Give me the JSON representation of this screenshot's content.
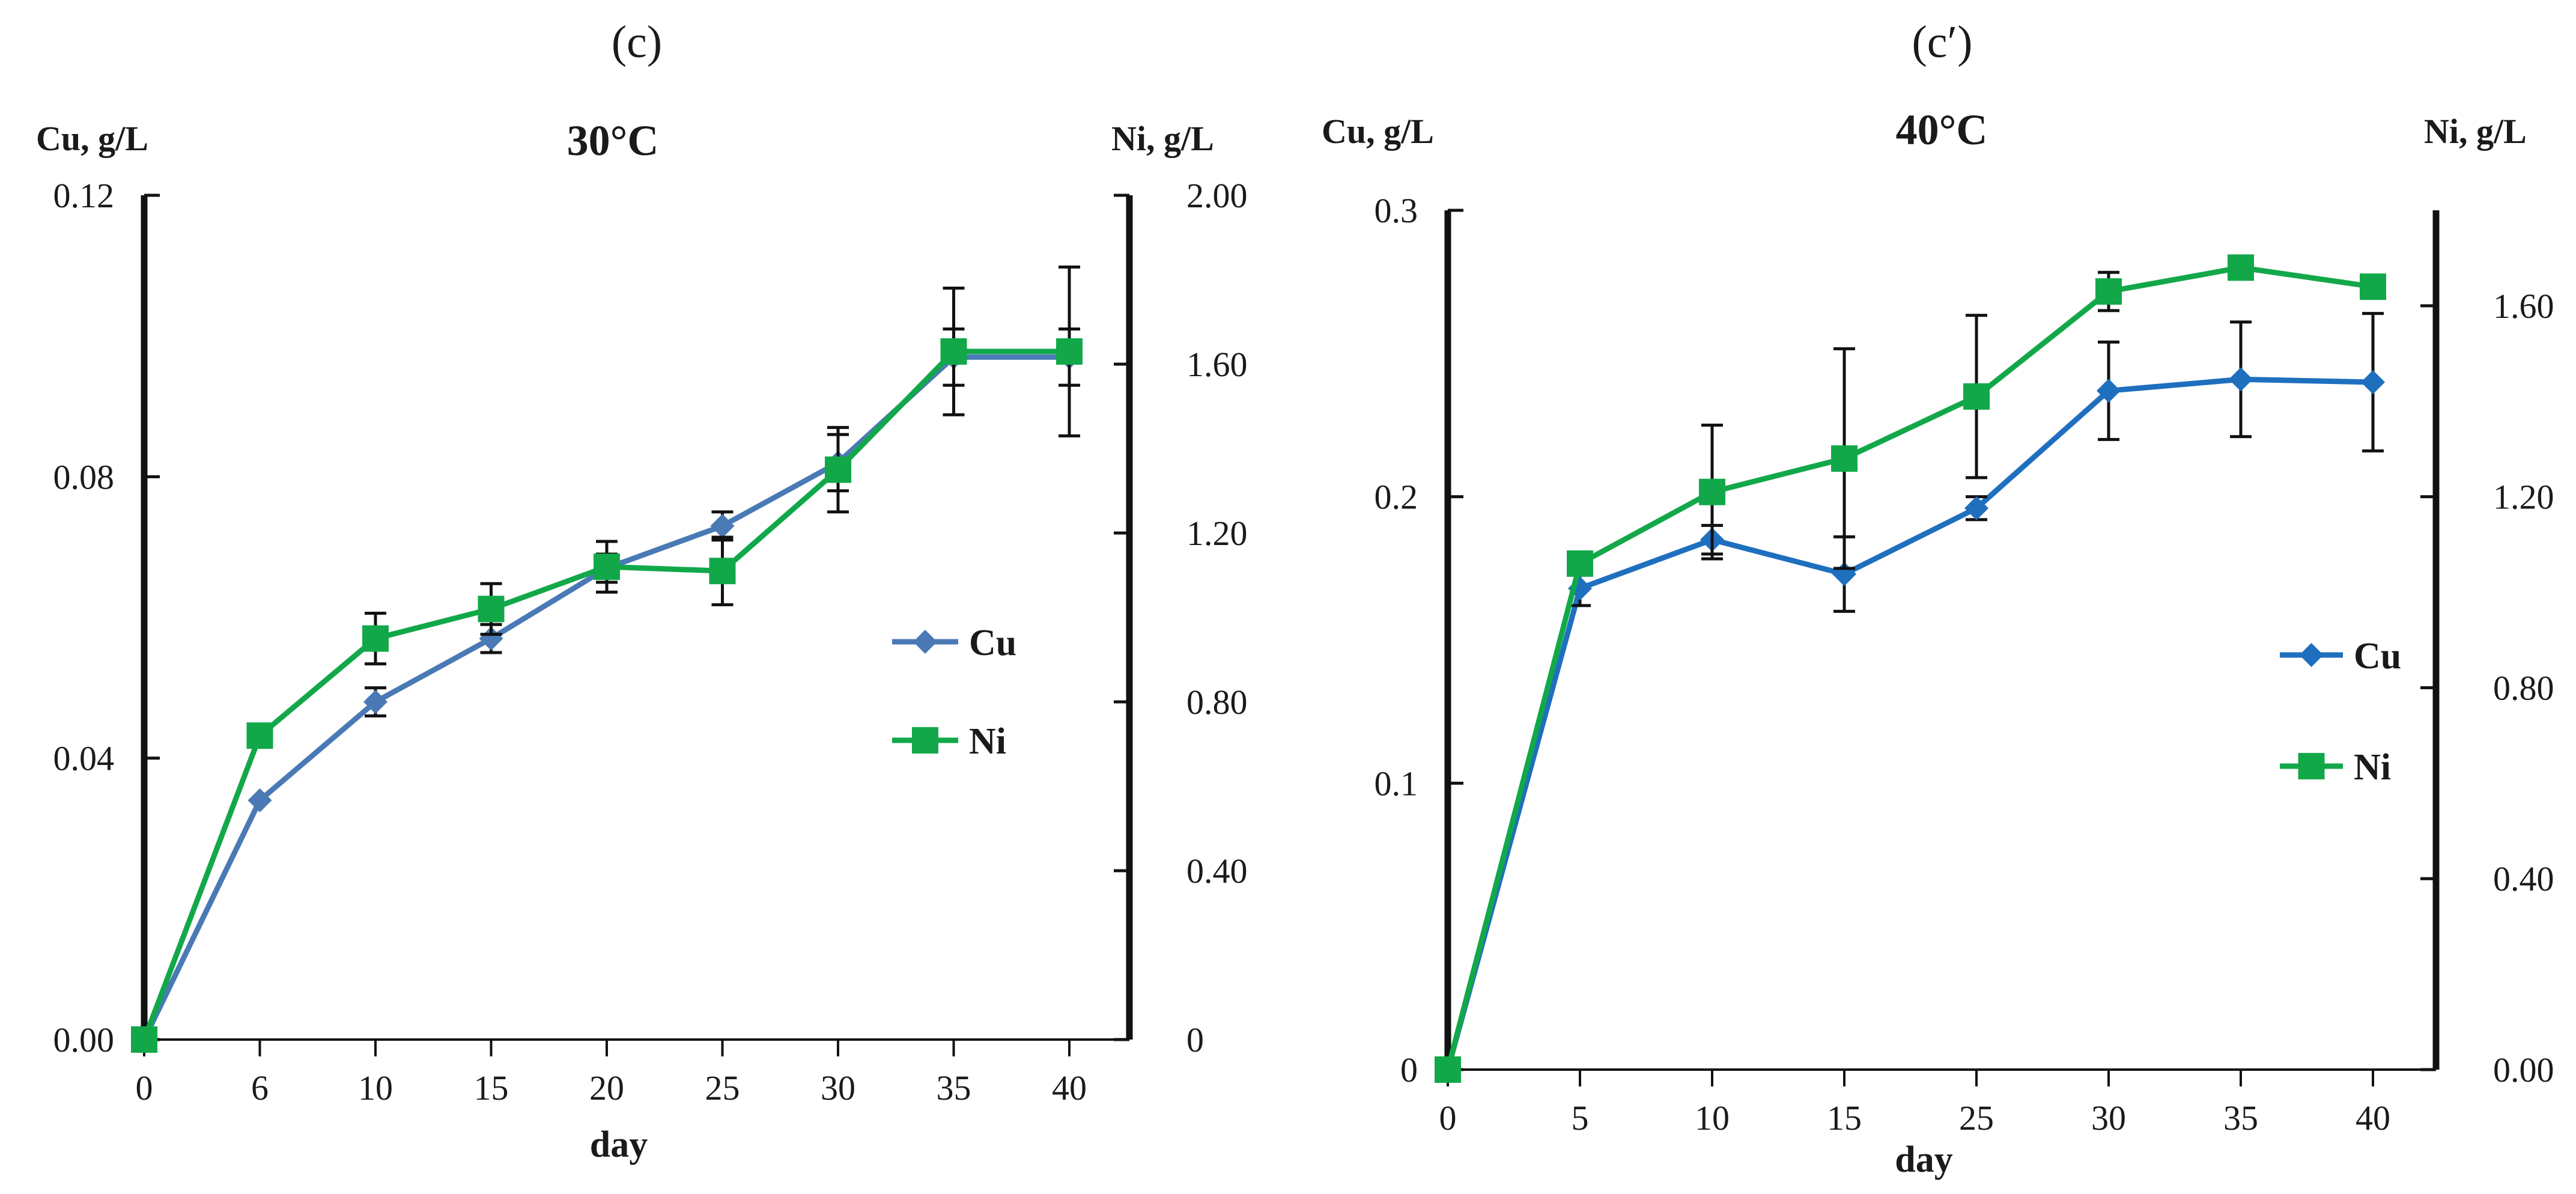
{
  "chart_data": [
    {
      "type": "line",
      "panel_label": "(c)",
      "title": "30°C",
      "xlabel": "day",
      "y_left_label": "Cu, g/L",
      "y_right_label": "Ni, g/L",
      "categories": [
        "0",
        "6",
        "10",
        "15",
        "20",
        "25",
        "30",
        "35",
        "40"
      ],
      "y_left_ticks": [
        "0.00",
        "0.04",
        "0.08",
        "0.12"
      ],
      "y_left_lim": [
        0,
        0.12
      ],
      "y_right_ticks": [
        "0",
        "0.40",
        "0.80",
        "1.20",
        "1.60",
        "2.00"
      ],
      "y_right_lim": [
        0,
        2.0
      ],
      "legend": [
        "Cu",
        "Ni"
      ],
      "series": [
        {
          "name": "Cu",
          "axis": "left",
          "color": "#4a7ab5",
          "marker": "diamond",
          "values": [
            0.0,
            0.034,
            0.048,
            0.057,
            0.067,
            0.073,
            0.082,
            0.097,
            0.097
          ],
          "errors": [
            0,
            0,
            0.002,
            0.002,
            0.002,
            0.002,
            0.004,
            0.004,
            0.004
          ]
        },
        {
          "name": "Ni",
          "axis": "right",
          "color": "#12a84a",
          "marker": "square",
          "values": [
            0.0,
            0.72,
            0.95,
            1.02,
            1.12,
            1.11,
            1.35,
            1.63,
            1.63
          ],
          "errors": [
            0,
            0.02,
            0.06,
            0.06,
            0.06,
            0.08,
            0.1,
            0.15,
            0.2
          ]
        }
      ]
    },
    {
      "type": "line",
      "panel_label": "(c′)",
      "title": "40°C",
      "xlabel": "day",
      "y_left_label": "Cu, g/L",
      "y_right_label": "Ni, g/L",
      "categories": [
        "0",
        "5",
        "10",
        "15",
        "25",
        "30",
        "35",
        "40"
      ],
      "y_left_ticks": [
        "0",
        "0.1",
        "0.2",
        "0.3"
      ],
      "y_left_lim": [
        0,
        0.3
      ],
      "y_right_ticks": [
        "0.00",
        "0.40",
        "0.80",
        "1.20",
        "1.60"
      ],
      "y_right_lim": [
        0,
        1.8
      ],
      "legend": [
        "Cu",
        "Ni"
      ],
      "series": [
        {
          "name": "Cu",
          "axis": "left",
          "color": "#1f6fbf",
          "marker": "diamond",
          "values": [
            0.0,
            0.168,
            0.185,
            0.173,
            0.196,
            0.237,
            0.241,
            0.24
          ],
          "errors": [
            0,
            0.006,
            0.005,
            0.013,
            0.004,
            0.017,
            0.02,
            0.024
          ]
        },
        {
          "name": "Ni",
          "axis": "right",
          "color": "#12a84a",
          "marker": "square",
          "values": [
            0.0,
            1.06,
            1.21,
            1.28,
            1.41,
            1.63,
            1.68,
            1.64
          ],
          "errors": [
            0,
            0.02,
            0.14,
            0.23,
            0.17,
            0.04,
            0,
            0.02
          ]
        }
      ]
    }
  ]
}
